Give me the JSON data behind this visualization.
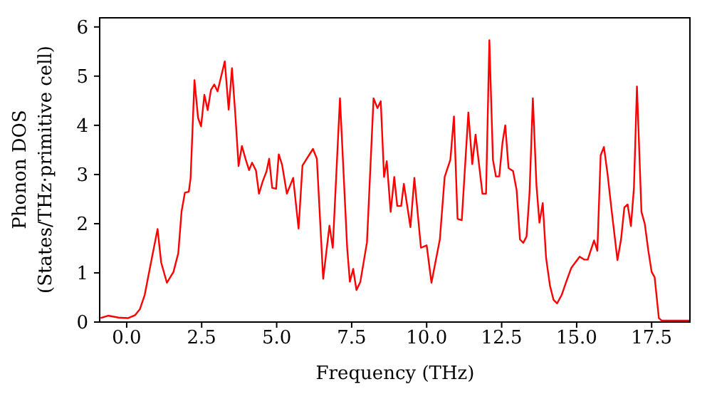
{
  "chart_data": {
    "type": "line",
    "xlabel": "Frequency (THz)",
    "ylabel": "Phonon DOS\n(States/THz·primitive cell)",
    "xlim": [
      -0.9,
      18.8
    ],
    "ylim": [
      0,
      6.2
    ],
    "xticks": [
      {
        "value": 0,
        "label": "0.0"
      },
      {
        "value": 2.5,
        "label": "2.5"
      },
      {
        "value": 5,
        "label": "5.0"
      },
      {
        "value": 7.5,
        "label": "7.5"
      },
      {
        "value": 10,
        "label": "10.0"
      },
      {
        "value": 12.5,
        "label": "12.5"
      },
      {
        "value": 15,
        "label": "15.0"
      },
      {
        "value": 17.5,
        "label": "17.5"
      }
    ],
    "yticks": [
      0,
      1,
      2,
      3,
      4,
      5,
      6
    ],
    "grid": false,
    "legend": false,
    "marker": "none",
    "line_style": "solid",
    "series": [
      {
        "color": "#ff0000",
        "x": [
          -0.87,
          -0.62,
          -0.27,
          0.05,
          0.28,
          0.44,
          0.6,
          0.81,
          1.03,
          1.15,
          1.34,
          1.56,
          1.72,
          1.83,
          1.94,
          2.07,
          2.13,
          2.26,
          2.38,
          2.48,
          2.59,
          2.7,
          2.81,
          2.92,
          3.03,
          3.27,
          3.4,
          3.51,
          3.62,
          3.73,
          3.84,
          3.97,
          4.08,
          4.18,
          4.31,
          4.41,
          4.54,
          4.66,
          4.75,
          4.85,
          4.98,
          5.07,
          5.18,
          5.34,
          5.55,
          5.73,
          5.86,
          6.21,
          6.34,
          6.55,
          6.76,
          6.87,
          7.11,
          7.35,
          7.44,
          7.55,
          7.66,
          7.79,
          8.01,
          8.23,
          8.36,
          8.47,
          8.58,
          8.67,
          8.8,
          8.92,
          9.02,
          9.15,
          9.24,
          9.46,
          9.59,
          9.81,
          10.0,
          10.16,
          10.44,
          10.6,
          10.79,
          10.91,
          11.03,
          11.17,
          11.39,
          11.52,
          11.63,
          11.86,
          11.98,
          12.09,
          12.21,
          12.31,
          12.42,
          12.53,
          12.62,
          12.73,
          12.88,
          13.0,
          13.11,
          13.22,
          13.33,
          13.43,
          13.54,
          13.66,
          13.76,
          13.87,
          13.98,
          14.11,
          14.23,
          14.35,
          14.5,
          14.66,
          14.82,
          14.98,
          15.1,
          15.25,
          15.37,
          15.58,
          15.69,
          15.8,
          15.91,
          16.03,
          16.16,
          16.36,
          16.48,
          16.59,
          16.7,
          16.81,
          16.91,
          17.01,
          17.16,
          17.27,
          17.39,
          17.5,
          17.6,
          17.74,
          17.83,
          18.77
        ],
        "values": [
          0.08,
          0.13,
          0.09,
          0.08,
          0.14,
          0.26,
          0.55,
          1.21,
          1.89,
          1.21,
          0.8,
          1.02,
          1.4,
          2.25,
          2.63,
          2.65,
          2.92,
          4.92,
          4.15,
          3.98,
          4.62,
          4.31,
          4.72,
          4.83,
          4.69,
          5.3,
          4.32,
          5.16,
          4.24,
          3.17,
          3.58,
          3.3,
          3.09,
          3.24,
          3.08,
          2.61,
          2.87,
          3.06,
          3.32,
          2.73,
          2.71,
          3.41,
          3.2,
          2.61,
          2.93,
          1.9,
          3.18,
          3.52,
          3.32,
          0.88,
          1.96,
          1.51,
          4.55,
          1.51,
          0.82,
          1.08,
          0.65,
          0.82,
          1.62,
          4.55,
          4.35,
          4.49,
          2.95,
          3.27,
          2.24,
          2.95,
          2.36,
          2.36,
          2.81,
          1.93,
          2.93,
          1.51,
          1.56,
          0.8,
          1.68,
          2.95,
          3.3,
          4.18,
          2.1,
          2.07,
          4.26,
          3.21,
          3.81,
          2.61,
          2.61,
          5.73,
          3.3,
          2.96,
          2.96,
          3.66,
          4.0,
          3.13,
          3.07,
          2.68,
          1.68,
          1.61,
          1.74,
          2.63,
          4.55,
          2.78,
          2.02,
          2.42,
          1.31,
          0.74,
          0.45,
          0.38,
          0.55,
          0.83,
          1.1,
          1.23,
          1.33,
          1.27,
          1.27,
          1.66,
          1.45,
          3.39,
          3.56,
          3.01,
          2.3,
          1.26,
          1.68,
          2.33,
          2.39,
          1.95,
          2.73,
          4.79,
          2.24,
          2.0,
          1.45,
          1.02,
          0.91,
          0.08,
          0.03,
          0.03
        ]
      }
    ]
  }
}
